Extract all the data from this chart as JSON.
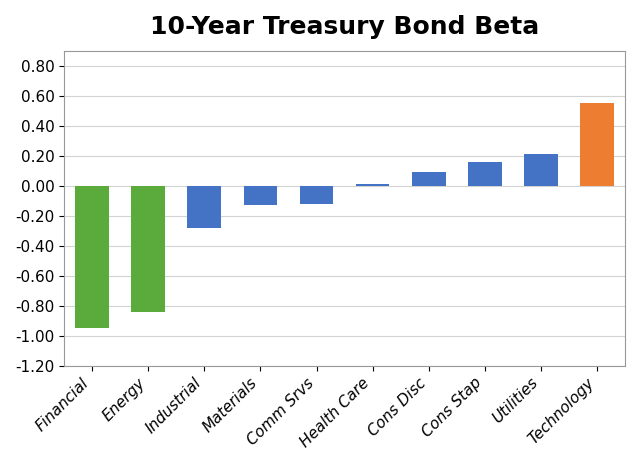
{
  "title": "10-Year Treasury Bond Beta",
  "categories": [
    "Financial",
    "Energy",
    "Industrial",
    "Materials",
    "Comm Srvs",
    "Health Care",
    "Cons Disc",
    "Cons Stap",
    "Utilities",
    "Technology"
  ],
  "values": [
    -0.95,
    -0.84,
    -0.28,
    -0.13,
    -0.12,
    0.01,
    0.09,
    0.16,
    0.21,
    0.55
  ],
  "bar_colors": [
    "#5aaa3c",
    "#5aaa3c",
    "#4472c4",
    "#4472c4",
    "#4472c4",
    "#4472c4",
    "#4472c4",
    "#4472c4",
    "#4472c4",
    "#ed7d31"
  ],
  "ylim": [
    -1.2,
    0.9
  ],
  "yticks": [
    -1.2,
    -1.0,
    -0.8,
    -0.6,
    -0.4,
    -0.2,
    0.0,
    0.2,
    0.4,
    0.6,
    0.8
  ],
  "ytick_labels": [
    "-1.20",
    "-1.00",
    "-0.80",
    "-0.60",
    "-0.40",
    "-0.20",
    "0.00",
    "0.20",
    "0.40",
    "0.60",
    "0.80"
  ],
  "title_fontsize": 18,
  "tick_label_fontsize": 11,
  "xlabel_rotation": 45,
  "background_color": "#ffffff",
  "grid_color": "#d3d3d3",
  "bar_width": 0.6
}
